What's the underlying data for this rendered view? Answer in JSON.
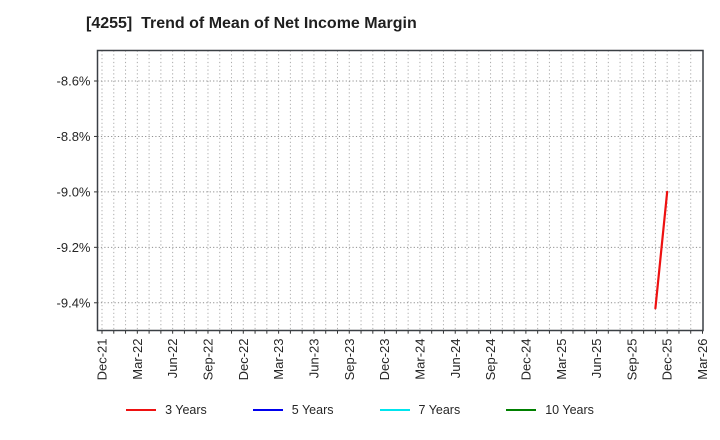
{
  "title": "[4255]  Trend of Mean of Net Income Margin",
  "chart_data": {
    "type": "line",
    "title": "[4255]  Trend of Mean of Net Income Margin",
    "xlabel": "",
    "ylabel": "",
    "y_unit": "%",
    "ylim": [
      -9.5,
      -8.49
    ],
    "y_ticks": [
      -8.6,
      -8.8,
      -9.0,
      -9.2,
      -9.4
    ],
    "y_tick_labels": [
      "-8.6%",
      "-8.8%",
      "-9.0%",
      "-9.2%",
      "-9.4%"
    ],
    "x_tick_labels": [
      "Dec-21",
      "Mar-22",
      "Jun-22",
      "Sep-22",
      "Dec-22",
      "Mar-23",
      "Jun-23",
      "Sep-23",
      "Dec-23",
      "Mar-24",
      "Jun-24",
      "Sep-24",
      "Dec-24",
      "Mar-25",
      "Jun-25",
      "Sep-25",
      "Dec-25",
      "Mar-26"
    ],
    "x_tick_month_indices": [
      0,
      3,
      6,
      9,
      12,
      15,
      18,
      21,
      24,
      27,
      30,
      33,
      36,
      39,
      42,
      45,
      48,
      51
    ],
    "months_total": 52,
    "grid": {
      "vertical": "monthly dotted",
      "horizontal": "major dotted"
    },
    "legend_position": "bottom-center",
    "series": [
      {
        "name": "3 Years",
        "color": "#ee1111",
        "points": [
          {
            "x": "Nov-25",
            "month_index": 47,
            "y": -9.42
          },
          {
            "x": "Dec-25",
            "month_index": 48,
            "y": -9.0
          }
        ]
      },
      {
        "name": "5 Years",
        "color": "#0000ee",
        "points": []
      },
      {
        "name": "7 Years",
        "color": "#00e5ee",
        "points": []
      },
      {
        "name": "10 Years",
        "color": "#008000",
        "points": []
      }
    ],
    "style": {
      "frame_color": "#3a3f44",
      "v_grid_color": "#aaaaaa",
      "h_grid_color": "#8f8f8f",
      "tick_label_color": "#262626",
      "background": "#ffffff"
    }
  }
}
